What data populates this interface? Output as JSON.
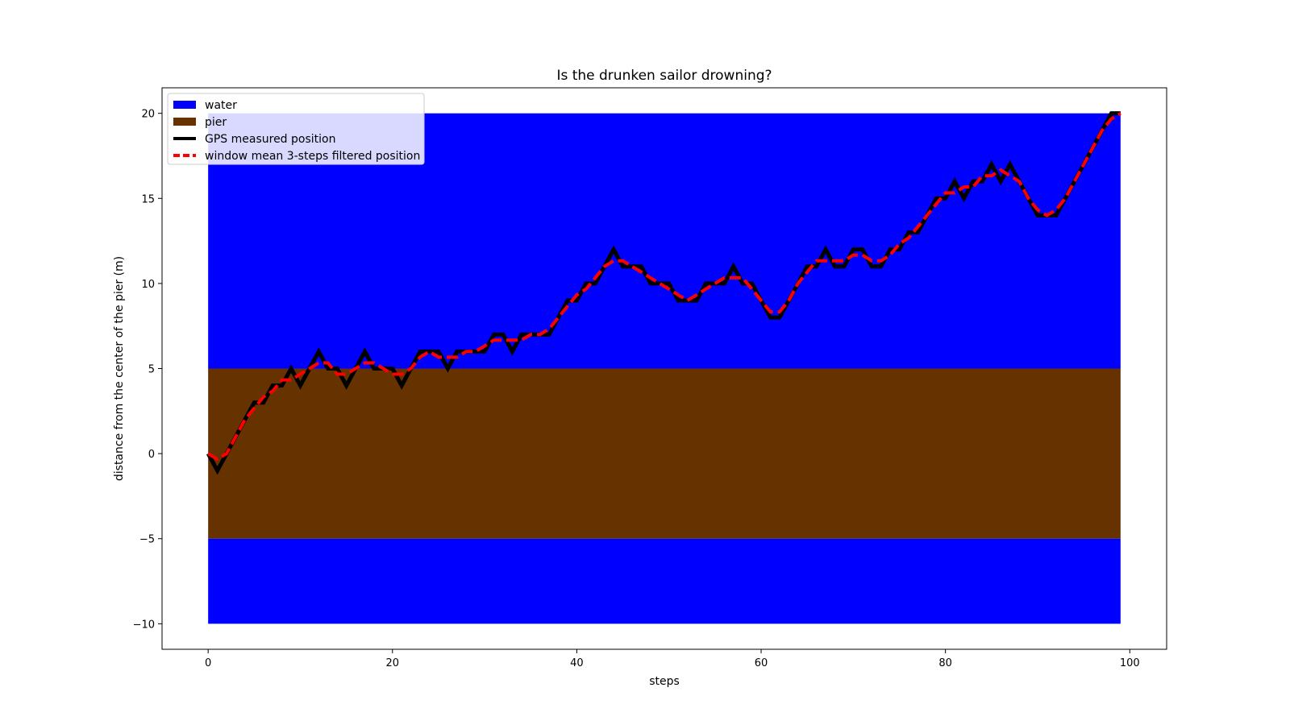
{
  "chart_data": {
    "type": "line",
    "title": "Is the drunken sailor drowning?",
    "xlabel": "steps",
    "ylabel": "distance from the center of the pier (m)",
    "xlim": [
      -5,
      104
    ],
    "ylim": [
      -11.5,
      21.5
    ],
    "x_ticks": [
      0,
      20,
      40,
      60,
      80,
      100
    ],
    "y_ticks": [
      -10,
      -5,
      0,
      5,
      10,
      15,
      20
    ],
    "grid": false,
    "legend_position": "top-left",
    "bands": [
      {
        "name": "water",
        "color": "#0000ff",
        "x_range": [
          0,
          99
        ],
        "y_range": [
          5,
          20
        ]
      },
      {
        "name": "pier",
        "color": "#663300",
        "x_range": [
          0,
          99
        ],
        "y_range": [
          -5,
          5
        ]
      },
      {
        "name": "",
        "color": "#0000ff",
        "x_range": [
          0,
          99
        ],
        "y_range": [
          -10,
          -5
        ]
      }
    ],
    "series": [
      {
        "name": "GPS measured position",
        "color": "#000000",
        "style": "solid",
        "x": [
          0,
          1,
          2,
          3,
          4,
          5,
          6,
          7,
          8,
          9,
          10,
          11,
          12,
          13,
          14,
          15,
          16,
          17,
          18,
          19,
          20,
          21,
          22,
          23,
          24,
          25,
          26,
          27,
          28,
          29,
          30,
          31,
          32,
          33,
          34,
          35,
          36,
          37,
          38,
          39,
          40,
          41,
          42,
          43,
          44,
          45,
          46,
          47,
          48,
          49,
          50,
          51,
          52,
          53,
          54,
          55,
          56,
          57,
          58,
          59,
          60,
          61,
          62,
          63,
          64,
          65,
          66,
          67,
          68,
          69,
          70,
          71,
          72,
          73,
          74,
          75,
          76,
          77,
          78,
          79,
          80,
          81,
          82,
          83,
          84,
          85,
          86,
          87,
          88,
          89,
          90,
          91,
          92,
          93,
          94,
          95,
          96,
          97,
          98,
          99
        ],
        "y": [
          0,
          -1,
          0,
          1,
          2,
          3,
          3,
          4,
          4,
          5,
          4,
          5,
          6,
          5,
          5,
          4,
          5,
          6,
          5,
          5,
          5,
          4,
          5,
          6,
          6,
          6,
          5,
          6,
          6,
          6,
          6,
          7,
          7,
          6,
          7,
          7,
          7,
          7,
          8,
          9,
          9,
          10,
          10,
          11,
          12,
          11,
          11,
          11,
          10,
          10,
          10,
          9,
          9,
          9,
          10,
          10,
          10,
          11,
          10,
          10,
          9,
          8,
          8,
          9,
          10,
          11,
          11,
          12,
          11,
          11,
          12,
          12,
          11,
          11,
          12,
          12,
          13,
          13,
          14,
          15,
          15,
          16,
          15,
          16,
          16,
          17,
          16,
          17,
          16,
          15,
          14,
          14,
          14,
          15,
          16,
          17,
          18,
          19,
          20,
          20
        ]
      },
      {
        "name": "window mean 3-steps filtered position",
        "color": "#ff0000",
        "style": "dashed",
        "x": [
          0,
          1,
          2,
          3,
          4,
          5,
          6,
          7,
          8,
          9,
          10,
          11,
          12,
          13,
          14,
          15,
          16,
          17,
          18,
          19,
          20,
          21,
          22,
          23,
          24,
          25,
          26,
          27,
          28,
          29,
          30,
          31,
          32,
          33,
          34,
          35,
          36,
          37,
          38,
          39,
          40,
          41,
          42,
          43,
          44,
          45,
          46,
          47,
          48,
          49,
          50,
          51,
          52,
          53,
          54,
          55,
          56,
          57,
          58,
          59,
          60,
          61,
          62,
          63,
          64,
          65,
          66,
          67,
          68,
          69,
          70,
          71,
          72,
          73,
          74,
          75,
          76,
          77,
          78,
          79,
          80,
          81,
          82,
          83,
          84,
          85,
          86,
          87,
          88,
          89,
          90,
          91,
          92,
          93,
          94,
          95,
          96,
          97,
          98,
          99
        ],
        "y": [
          0,
          -0.33,
          0,
          1,
          2,
          2.67,
          3.33,
          3.67,
          4.33,
          4.33,
          4.67,
          5,
          5.33,
          5.33,
          4.67,
          4.67,
          5,
          5.33,
          5.33,
          5,
          4.67,
          4.67,
          5,
          5.67,
          6,
          5.67,
          5.67,
          5.67,
          6,
          6,
          6.33,
          6.67,
          6.67,
          6.67,
          6.67,
          7,
          7,
          7.33,
          8,
          8.67,
          9.33,
          9.67,
          10.33,
          11,
          11.33,
          11.33,
          11,
          10.67,
          10.33,
          10,
          9.67,
          9.33,
          9,
          9.33,
          9.67,
          10,
          10.33,
          10.33,
          10.33,
          9.67,
          9,
          8.33,
          8.33,
          9,
          10,
          10.67,
          11.33,
          11.33,
          11.33,
          11.33,
          11.67,
          11.67,
          11.33,
          11.33,
          11.67,
          12.33,
          12.67,
          13.33,
          14,
          14.67,
          15.33,
          15.33,
          15.67,
          15.67,
          16.33,
          16.33,
          16.67,
          16.33,
          16,
          15,
          14.33,
          14,
          14.33,
          15,
          16,
          17,
          18,
          19,
          19.67,
          20
        ]
      }
    ],
    "legend": [
      {
        "label": "water",
        "kind": "patch",
        "color": "#0000ff"
      },
      {
        "label": "pier",
        "kind": "patch",
        "color": "#663300"
      },
      {
        "label": "GPS measured position",
        "kind": "line",
        "color": "#000000",
        "style": "solid"
      },
      {
        "label": "window mean 3-steps filtered position",
        "kind": "line",
        "color": "#ff0000",
        "style": "dashed"
      }
    ]
  }
}
